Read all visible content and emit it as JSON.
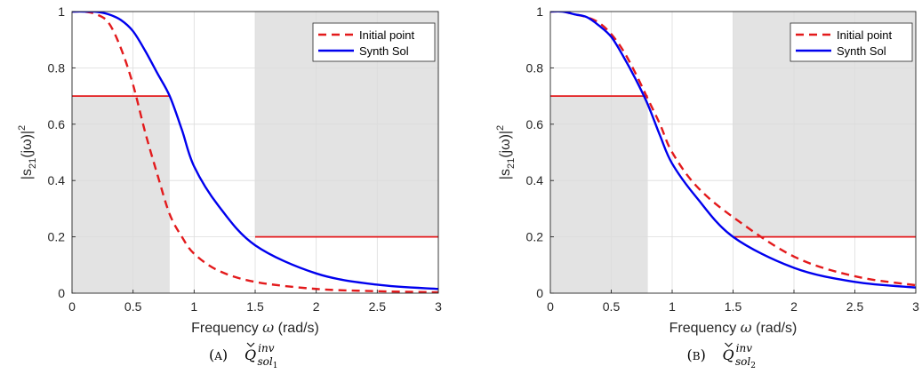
{
  "chart_data": [
    {
      "type": "line",
      "xlabel_prefix": "Frequency ",
      "xlabel_symbol": "ω",
      "xlabel_suffix": " (rad/s)",
      "ylabel": "|s21(jω)|2",
      "xlim": [
        0,
        3
      ],
      "ylim": [
        0,
        1
      ],
      "xticks": [
        "0",
        "0.5",
        "1",
        "1.5",
        "2",
        "2.5",
        "3"
      ],
      "yticks": [
        "0",
        "0.2",
        "0.4",
        "0.6",
        "0.8",
        "1"
      ],
      "xtick_values": [
        0,
        0.5,
        1,
        1.5,
        2,
        2.5,
        3
      ],
      "ytick_values": [
        0,
        0.2,
        0.4,
        0.6,
        0.8,
        1
      ],
      "grid": true,
      "legend_position": "top-right",
      "series": [
        {
          "name": "Initial point",
          "style": "dashed",
          "color": "#e31a1c",
          "x": [
            0,
            0.1,
            0.2,
            0.3,
            0.4,
            0.5,
            0.6,
            0.7,
            0.8,
            0.9,
            1.0,
            1.2,
            1.5,
            2.0,
            2.5,
            3.0
          ],
          "y": [
            1.0,
            1.0,
            0.99,
            0.96,
            0.87,
            0.74,
            0.57,
            0.42,
            0.28,
            0.2,
            0.14,
            0.08,
            0.04,
            0.015,
            0.007,
            0.003
          ]
        },
        {
          "name": "Synth Sol",
          "style": "solid",
          "color": "#0000ee",
          "x": [
            0,
            0.1,
            0.2,
            0.3,
            0.4,
            0.5,
            0.6,
            0.7,
            0.8,
            0.9,
            1.0,
            1.2,
            1.5,
            2.0,
            2.5,
            3.0
          ],
          "y": [
            1.0,
            1.0,
            0.999,
            0.99,
            0.97,
            0.93,
            0.86,
            0.78,
            0.7,
            0.58,
            0.45,
            0.31,
            0.17,
            0.07,
            0.03,
            0.015
          ]
        }
      ],
      "shaded_regions": [
        {
          "x": [
            0,
            0.8
          ],
          "y": [
            0,
            0.7
          ],
          "color": "#e3e3e3"
        },
        {
          "x": [
            1.5,
            3
          ],
          "y": [
            0.2,
            1
          ],
          "color": "#e3e3e3"
        }
      ],
      "spec_lines": [
        {
          "x": [
            0,
            0.8
          ],
          "y": 0.7,
          "color": "#e31a1c"
        },
        {
          "x": [
            1.5,
            3
          ],
          "y": 0.2,
          "color": "#e31a1c"
        }
      ],
      "caption_tag": "(A)",
      "caption_sub": "1"
    },
    {
      "type": "line",
      "xlabel_prefix": "Frequency ",
      "xlabel_symbol": "ω",
      "xlabel_suffix": " (rad/s)",
      "ylabel": "|s21(jω)|2",
      "xlim": [
        0,
        3
      ],
      "ylim": [
        0,
        1
      ],
      "xticks": [
        "0",
        "0.5",
        "1",
        "1.5",
        "2",
        "2.5",
        "3"
      ],
      "yticks": [
        "0",
        "0.2",
        "0.4",
        "0.6",
        "0.8",
        "1"
      ],
      "xtick_values": [
        0,
        0.5,
        1,
        1.5,
        2,
        2.5,
        3
      ],
      "ytick_values": [
        0,
        0.2,
        0.4,
        0.6,
        0.8,
        1
      ],
      "grid": true,
      "legend_position": "top-right",
      "series": [
        {
          "name": "Initial point",
          "style": "dashed",
          "color": "#e31a1c",
          "x": [
            0,
            0.1,
            0.2,
            0.3,
            0.4,
            0.5,
            0.6,
            0.7,
            0.8,
            0.9,
            1.0,
            1.2,
            1.5,
            2.0,
            2.5,
            3.0
          ],
          "y": [
            1.0,
            1.0,
            0.99,
            0.98,
            0.96,
            0.92,
            0.86,
            0.78,
            0.69,
            0.6,
            0.5,
            0.38,
            0.27,
            0.13,
            0.06,
            0.028
          ]
        },
        {
          "name": "Synth Sol",
          "style": "solid",
          "color": "#0000ee",
          "x": [
            0,
            0.1,
            0.2,
            0.3,
            0.4,
            0.5,
            0.6,
            0.7,
            0.8,
            0.9,
            1.0,
            1.2,
            1.5,
            2.0,
            2.5,
            3.0
          ],
          "y": [
            1.0,
            1.0,
            0.99,
            0.98,
            0.95,
            0.91,
            0.84,
            0.76,
            0.67,
            0.56,
            0.46,
            0.34,
            0.2,
            0.09,
            0.04,
            0.02
          ]
        }
      ],
      "shaded_regions": [
        {
          "x": [
            0,
            0.8
          ],
          "y": [
            0,
            0.7
          ],
          "color": "#e3e3e3"
        },
        {
          "x": [
            1.5,
            3
          ],
          "y": [
            0.2,
            1
          ],
          "color": "#e3e3e3"
        }
      ],
      "spec_lines": [
        {
          "x": [
            0,
            0.8
          ],
          "y": 0.7,
          "color": "#e31a1c"
        },
        {
          "x": [
            1.5,
            3
          ],
          "y": 0.2,
          "color": "#e31a1c"
        }
      ],
      "caption_tag": "(B)",
      "caption_sub": "2"
    }
  ]
}
